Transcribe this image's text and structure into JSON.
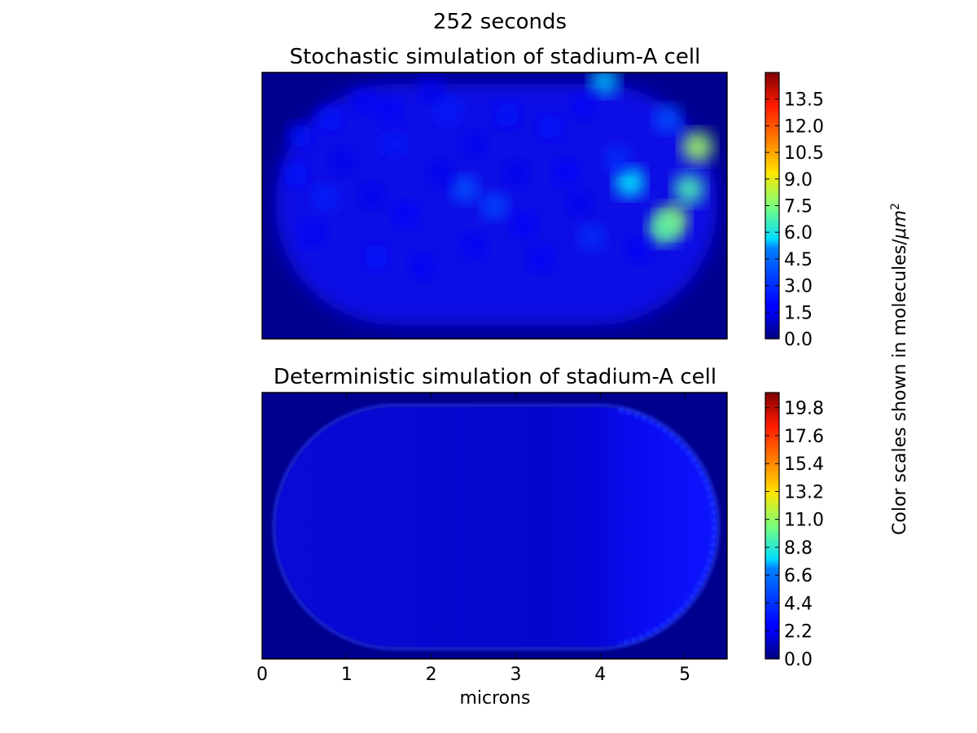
{
  "figure": {
    "suptitle": "252 seconds",
    "side_label": "Color scales shown in molecules/",
    "side_label_unit": "μm",
    "side_label_exp": "2",
    "xlabel": "microns",
    "x_ticks": [
      "0",
      "1",
      "2",
      "3",
      "4",
      "5"
    ]
  },
  "colors": {
    "jet_min": "#00007f",
    "jet_max": "#7f0000",
    "background": "#00008f"
  },
  "chart_data": [
    {
      "type": "heatmap",
      "title": "Stochastic simulation of stadium-A cell",
      "colormap": "jet",
      "clim": [
        0,
        15
      ],
      "colorbar_ticks": [
        "0.0",
        "1.5",
        "3.0",
        "4.5",
        "6.0",
        "7.5",
        "9.0",
        "10.5",
        "12.0",
        "13.5"
      ],
      "shape": "stadium",
      "xlim": [
        0,
        5.5
      ],
      "description_values": {
        "typical_interior": 1.8,
        "peak_near_right_edge": 8.0
      },
      "hotspots": [
        {
          "x": 5.15,
          "y": 0.88,
          "value": 8.0
        },
        {
          "x": 5.05,
          "y": 1.38,
          "value": 6.8
        },
        {
          "x": 4.85,
          "y": 1.75,
          "value": 7.8
        },
        {
          "x": 4.75,
          "y": 1.85,
          "value": 7.0
        },
        {
          "x": 4.35,
          "y": 1.3,
          "value": 5.6
        },
        {
          "x": 4.05,
          "y": 0.1,
          "value": 4.8
        },
        {
          "x": 4.8,
          "y": 0.55,
          "value": 3.2
        },
        {
          "x": 2.4,
          "y": 1.38,
          "value": 3.2
        },
        {
          "x": 2.75,
          "y": 1.58,
          "value": 3.0
        },
        {
          "x": 3.9,
          "y": 1.95,
          "value": 2.6
        },
        {
          "x": 4.2,
          "y": 1.02,
          "value": 2.6
        },
        {
          "x": 0.75,
          "y": 1.48,
          "value": 2.4
        },
        {
          "x": 2.2,
          "y": 0.45,
          "value": 2.3
        },
        {
          "x": 1.55,
          "y": 0.85,
          "value": 2.2
        },
        {
          "x": 0.8,
          "y": 0.55,
          "value": 2.1
        },
        {
          "x": 1.35,
          "y": 2.18,
          "value": 2.1
        },
        {
          "x": 3.4,
          "y": 0.65,
          "value": 2.0
        },
        {
          "x": 0.45,
          "y": 0.75,
          "value": 2.0
        },
        {
          "x": 0.4,
          "y": 1.2,
          "value": 2.0
        },
        {
          "x": 2.9,
          "y": 0.5,
          "value": 2.0
        },
        {
          "x": 3.6,
          "y": 1.18,
          "value": 1.9
        },
        {
          "x": 1.7,
          "y": 1.68,
          "value": 1.9
        },
        {
          "x": 1.5,
          "y": 0.45,
          "value": 1.9
        },
        {
          "x": 3.1,
          "y": 1.8,
          "value": 1.9
        },
        {
          "x": 1.9,
          "y": 2.3,
          "value": 1.8
        },
        {
          "x": 3.3,
          "y": 2.2,
          "value": 1.8
        },
        {
          "x": 2.5,
          "y": 2.05,
          "value": 1.8
        },
        {
          "x": 1.3,
          "y": 1.45,
          "value": 1.7
        },
        {
          "x": 2.1,
          "y": 1.2,
          "value": 1.7
        },
        {
          "x": 3.8,
          "y": 0.4,
          "value": 1.8
        },
        {
          "x": 1.2,
          "y": 0.35,
          "value": 1.8
        },
        {
          "x": 2.0,
          "y": 0.2,
          "value": 1.7
        },
        {
          "x": 3.0,
          "y": 1.2,
          "value": 1.7
        },
        {
          "x": 0.6,
          "y": 1.9,
          "value": 1.8
        },
        {
          "x": 4.45,
          "y": 2.1,
          "value": 1.8
        },
        {
          "x": 2.5,
          "y": 0.85,
          "value": 1.7
        },
        {
          "x": 0.95,
          "y": 1.05,
          "value": 1.6
        },
        {
          "x": 3.75,
          "y": 1.55,
          "value": 1.7
        }
      ]
    },
    {
      "type": "heatmap",
      "title": "Deterministic simulation of stadium-A cell",
      "colormap": "jet",
      "clim": [
        0,
        21
      ],
      "colorbar_ticks": [
        "0.0",
        "2.2",
        "4.4",
        "6.6",
        "8.8",
        "11.0",
        "13.2",
        "15.4",
        "17.6",
        "19.8"
      ],
      "shape": "stadium",
      "xlim": [
        0,
        5.5
      ],
      "x_ticks": [
        0,
        1,
        2,
        3,
        4,
        5
      ],
      "xlabel": "microns",
      "description_values": {
        "interior_left": 1.2,
        "interior_right": 2.3,
        "edge_rim": 2.8
      }
    }
  ]
}
